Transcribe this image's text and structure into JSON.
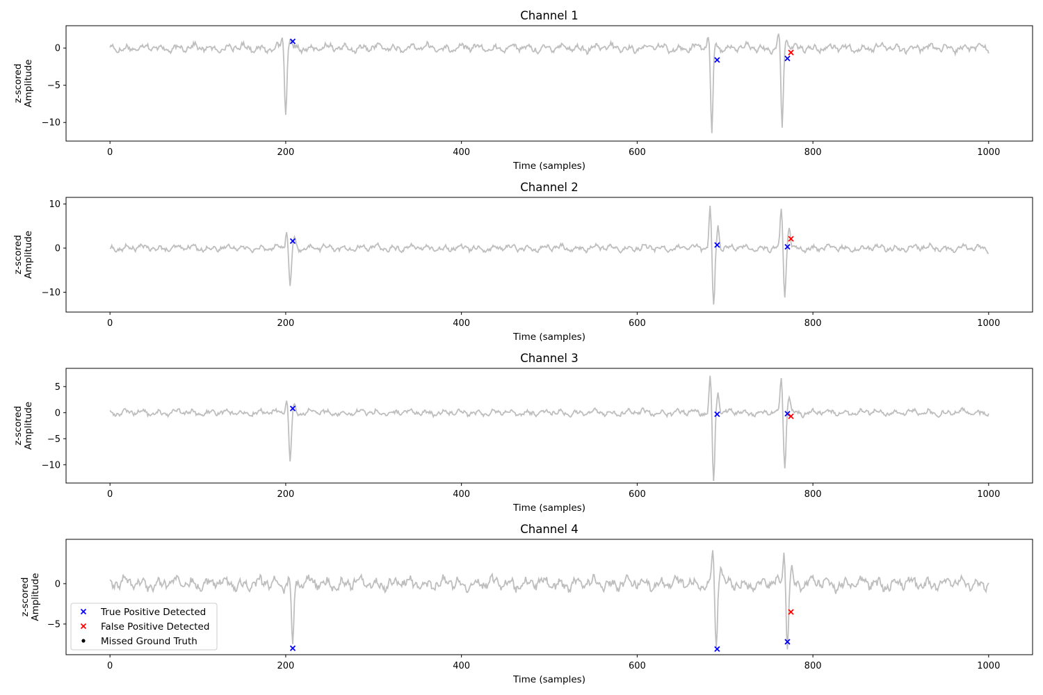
{
  "chart_data": [
    {
      "type": "line",
      "title": "Channel 1",
      "xlabel": "Time (samples)",
      "ylabel_lines": [
        "z-scored",
        "Amplitude"
      ],
      "xlim": [
        -50,
        1050
      ],
      "ylim": [
        -12.5,
        3.0
      ],
      "xticks": [
        0,
        200,
        400,
        600,
        800,
        1000
      ],
      "yticks": [
        0,
        -5,
        -10
      ],
      "signal": {
        "noise_amplitude": 0.55,
        "spikes": [
          {
            "x": 200,
            "depth": -9.0,
            "peak": 1.2
          },
          {
            "x": 685,
            "depth": -11.8,
            "peak": 1.9
          },
          {
            "x": 765,
            "depth": -11.0,
            "peak": 2.2
          }
        ]
      },
      "markers": {
        "true_positive": [
          {
            "x": 208,
            "y": 0.9
          },
          {
            "x": 691,
            "y": -1.6
          },
          {
            "x": 771,
            "y": -1.4
          }
        ],
        "false_positive": [
          {
            "x": 775,
            "y": -0.6
          }
        ],
        "missed": []
      }
    },
    {
      "type": "line",
      "title": "Channel 2",
      "xlabel": "Time (samples)",
      "ylabel_lines": [
        "z-scored",
        "Amplitude"
      ],
      "xlim": [
        -50,
        1050
      ],
      "ylim": [
        -14.5,
        11.5
      ],
      "xticks": [
        0,
        200,
        400,
        600,
        800,
        1000
      ],
      "yticks": [
        10,
        0,
        -10
      ],
      "signal": {
        "noise_amplitude": 0.75,
        "spikes": [
          {
            "x": 205,
            "depth": -8.8,
            "peak": 4.3
          },
          {
            "x": 687,
            "depth": -13.2,
            "peak": 10.4
          },
          {
            "x": 768,
            "depth": -11.0,
            "peak": 9.7
          }
        ]
      },
      "markers": {
        "true_positive": [
          {
            "x": 208,
            "y": 1.6
          },
          {
            "x": 691,
            "y": 0.7
          },
          {
            "x": 771,
            "y": 0.3
          }
        ],
        "false_positive": [
          {
            "x": 775,
            "y": 2.1
          }
        ],
        "missed": []
      }
    },
    {
      "type": "line",
      "title": "Channel 3",
      "xlabel": "Time (samples)",
      "ylabel_lines": [
        "z-scored",
        "Amplitude"
      ],
      "xlim": [
        -50,
        1050
      ],
      "ylim": [
        -13.5,
        8.5
      ],
      "xticks": [
        0,
        200,
        400,
        600,
        800,
        1000
      ],
      "yticks": [
        5,
        0,
        -5,
        -10
      ],
      "signal": {
        "noise_amplitude": 0.6,
        "spikes": [
          {
            "x": 205,
            "depth": -9.5,
            "peak": 2.7
          },
          {
            "x": 687,
            "depth": -12.9,
            "peak": 7.6
          },
          {
            "x": 768,
            "depth": -11.0,
            "peak": 7.0
          }
        ]
      },
      "markers": {
        "true_positive": [
          {
            "x": 208,
            "y": 0.8
          },
          {
            "x": 691,
            "y": -0.3
          },
          {
            "x": 771,
            "y": -0.2
          }
        ],
        "false_positive": [
          {
            "x": 775,
            "y": -0.7
          }
        ],
        "missed": []
      }
    },
    {
      "type": "line",
      "title": "Channel 4",
      "xlabel": "Time (samples)",
      "ylabel_lines": [
        "z-scored",
        "Amplitude"
      ],
      "xlim": [
        -50,
        1050
      ],
      "ylim": [
        -8.8,
        5.5
      ],
      "xticks": [
        0,
        200,
        400,
        600,
        800,
        1000
      ],
      "yticks": [
        0,
        -5
      ],
      "signal": {
        "noise_amplitude": 0.8,
        "spikes": [
          {
            "x": 208,
            "depth": -8.2,
            "peak": 1.0
          },
          {
            "x": 690,
            "depth": -8.2,
            "peak": 4.4
          },
          {
            "x": 771,
            "depth": -7.3,
            "peak": 4.2
          }
        ]
      },
      "markers": {
        "true_positive": [
          {
            "x": 208,
            "y": -8.0
          },
          {
            "x": 691,
            "y": -8.1
          },
          {
            "x": 771,
            "y": -7.2
          }
        ],
        "false_positive": [
          {
            "x": 775,
            "y": -3.5
          }
        ],
        "missed": []
      },
      "legend": {
        "placement": "lower-left",
        "entries": [
          {
            "label": "True Positive Detected",
            "marker": "x",
            "color": "#0000ff"
          },
          {
            "label": "False Positive Detected",
            "marker": "x",
            "color": "#ff0000"
          },
          {
            "label": "Missed Ground Truth",
            "marker": "dot",
            "color": "#000000"
          }
        ]
      }
    }
  ],
  "colors": {
    "signal": "#bebebe",
    "true_positive": "#0000ff",
    "false_positive": "#ff0000",
    "missed": "#000000",
    "axes": "#000000"
  },
  "grid": false
}
